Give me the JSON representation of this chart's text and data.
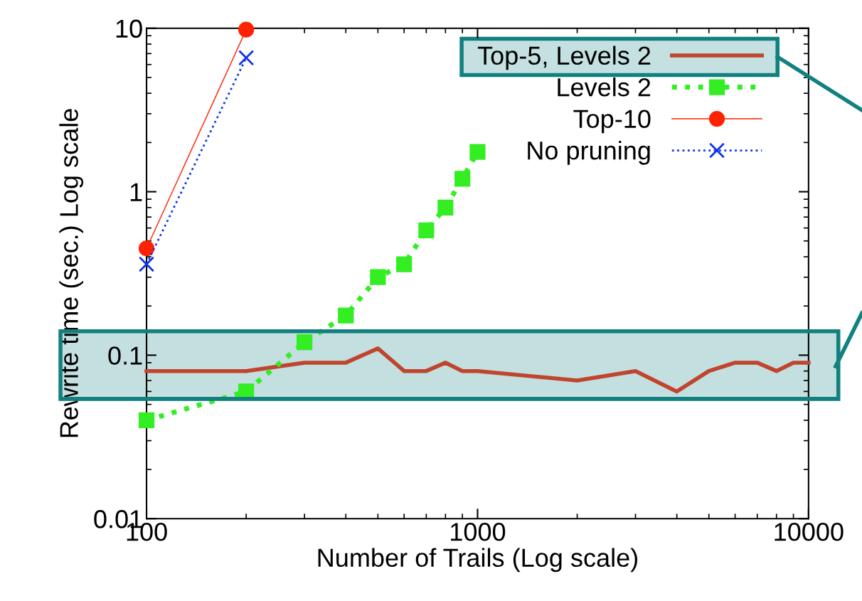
{
  "chart_data": {
    "type": "line",
    "xlabel": "Number of Trails (Log scale)",
    "ylabel": "Rewrite time (sec.) Log scale",
    "log": "xy",
    "xlim": [
      100,
      10000
    ],
    "xticks": [
      100,
      1000,
      10000
    ],
    "ylim": [
      0.01,
      10
    ],
    "yticks": [
      0.01,
      0.1,
      1,
      10
    ],
    "grid": false,
    "legend": "top right",
    "bands": [
      {
        "axis": "y",
        "from": 0.054,
        "to": 0.14,
        "color": "#128080"
      }
    ],
    "series": [
      {
        "name": "Top-5, Levels 2",
        "color": "#c0452e",
        "marker": "none",
        "line_style": "solid",
        "x": [
          100,
          200,
          300,
          400,
          500,
          600,
          700,
          800,
          900,
          1000,
          2000,
          3000,
          4000,
          5000,
          6000,
          7000,
          8000,
          9000,
          10000
        ],
        "values": [
          0.08,
          0.08,
          0.09,
          0.09,
          0.11,
          0.08,
          0.08,
          0.09,
          0.08,
          0.08,
          0.07,
          0.08,
          0.06,
          0.08,
          0.09,
          0.09,
          0.08,
          0.09,
          0.09
        ]
      },
      {
        "name": "Levels 2",
        "color": "#33ee22",
        "marker": "square",
        "line_style": "dotted",
        "x": [
          100,
          200,
          300,
          400,
          500,
          600,
          700,
          800,
          900,
          1000
        ],
        "values": [
          0.04,
          0.06,
          0.12,
          0.175,
          0.3,
          0.36,
          0.58,
          0.8,
          1.2,
          1.75
        ]
      },
      {
        "name": "Top-10",
        "color": "#ff2200",
        "marker": "circle",
        "line_style": "solid",
        "x": [
          100,
          200
        ],
        "values": [
          0.45,
          9.8
        ]
      },
      {
        "name": "No pruning",
        "color": "#1133ee",
        "marker": "cross",
        "line_style": "dotted",
        "x": [
          100,
          200
        ],
        "values": [
          0.36,
          6.6
        ]
      }
    ]
  }
}
